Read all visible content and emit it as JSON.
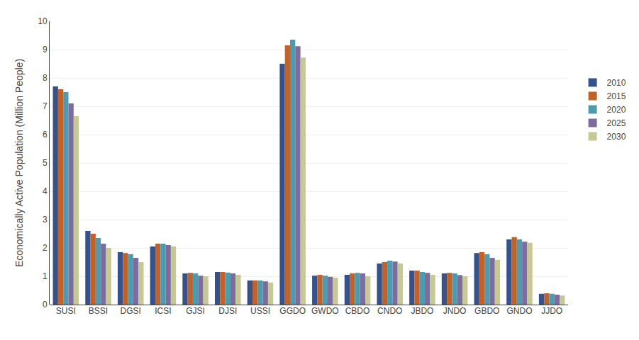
{
  "chart_data": {
    "type": "bar",
    "categories": [
      "SUSI",
      "BSSI",
      "DGSI",
      "ICSI",
      "GJSI",
      "DJSI",
      "USSI",
      "GGDO",
      "GWDO",
      "CBDO",
      "CNDO",
      "JBDO",
      "JNDO",
      "GBDO",
      "GNDO",
      "JJDO"
    ],
    "series": [
      {
        "name": "2010",
        "color": "#35538a",
        "values": [
          7.7,
          2.6,
          1.85,
          2.05,
          1.1,
          1.15,
          0.85,
          8.5,
          1.02,
          1.05,
          1.45,
          1.2,
          1.1,
          1.82,
          2.3,
          0.38
        ]
      },
      {
        "name": "2015",
        "color": "#c0622a",
        "values": [
          7.6,
          2.5,
          1.82,
          2.15,
          1.12,
          1.15,
          0.85,
          9.15,
          1.05,
          1.1,
          1.5,
          1.2,
          1.12,
          1.85,
          2.38,
          0.4
        ]
      },
      {
        "name": "2020",
        "color": "#4e9bb0",
        "values": [
          7.5,
          2.35,
          1.78,
          2.15,
          1.1,
          1.13,
          0.85,
          9.35,
          1.02,
          1.12,
          1.55,
          1.15,
          1.1,
          1.78,
          2.3,
          0.38
        ]
      },
      {
        "name": "2025",
        "color": "#7b6e9f",
        "values": [
          7.1,
          2.15,
          1.65,
          2.1,
          1.02,
          1.1,
          0.82,
          9.12,
          0.98,
          1.1,
          1.52,
          1.12,
          1.04,
          1.65,
          2.22,
          0.35
        ]
      },
      {
        "name": "2030",
        "color": "#c8c896",
        "values": [
          6.65,
          2.0,
          1.5,
          2.05,
          1.0,
          1.05,
          0.78,
          8.72,
          0.95,
          1.0,
          1.45,
          1.05,
          1.0,
          1.58,
          2.18,
          0.32
        ]
      }
    ],
    "ylabel": "Economically Active Population (Million People)",
    "ylim": [
      0,
      10
    ],
    "yticks": [
      0,
      1,
      2,
      3,
      4,
      5,
      6,
      7,
      8,
      9,
      10
    ],
    "grid": true,
    "legend": "right"
  }
}
